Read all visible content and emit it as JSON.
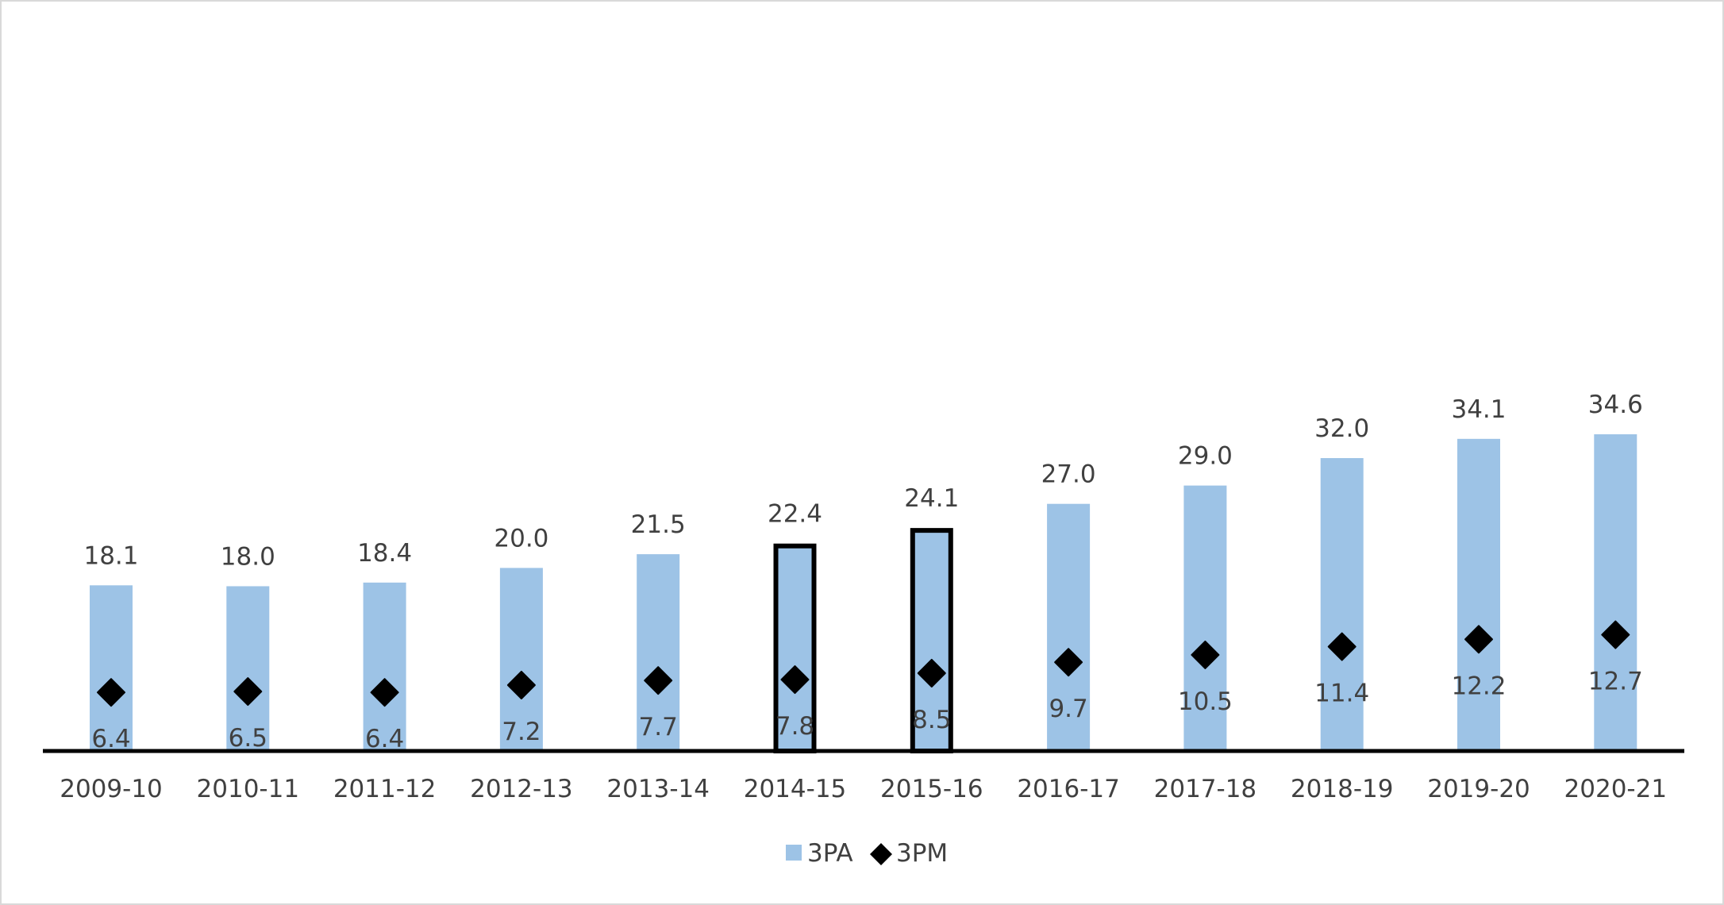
{
  "chart_data": {
    "type": "bar",
    "categories": [
      "2009-10",
      "2010-11",
      "2011-12",
      "2012-13",
      "2013-14",
      "2014-15",
      "2015-16",
      "2016-17",
      "2017-18",
      "2018-19",
      "2019-20",
      "2020-21"
    ],
    "series": [
      {
        "name": "3PA",
        "type": "bar",
        "values": [
          18.1,
          18.0,
          18.4,
          20.0,
          21.5,
          22.4,
          24.1,
          27.0,
          29.0,
          32.0,
          34.1,
          34.6
        ],
        "labels": [
          "18.1",
          "18.0",
          "18.4",
          "20.0",
          "21.5",
          "22.4",
          "24.1",
          "27.0",
          "29.0",
          "32.0",
          "34.1",
          "34.6"
        ],
        "color": "#9dc3e6"
      },
      {
        "name": "3PM",
        "type": "scatter",
        "marker": "diamond",
        "values": [
          6.4,
          6.5,
          6.4,
          7.2,
          7.7,
          7.8,
          8.5,
          9.7,
          10.5,
          11.4,
          12.2,
          12.7
        ],
        "labels": [
          "6.4",
          "6.5",
          "6.4",
          "7.2",
          "7.7",
          "7.8",
          "8.5",
          "9.7",
          "10.5",
          "11.4",
          "12.2",
          "12.7"
        ],
        "color": "#000000"
      }
    ],
    "highlighted_categories": [
      "2014-15",
      "2015-16"
    ],
    "highlight_outline_color": "#000000",
    "ylim": [
      0,
      36
    ],
    "grid": false,
    "legend_position": "bottom-center",
    "title": "",
    "xlabel": "",
    "ylabel": ""
  }
}
